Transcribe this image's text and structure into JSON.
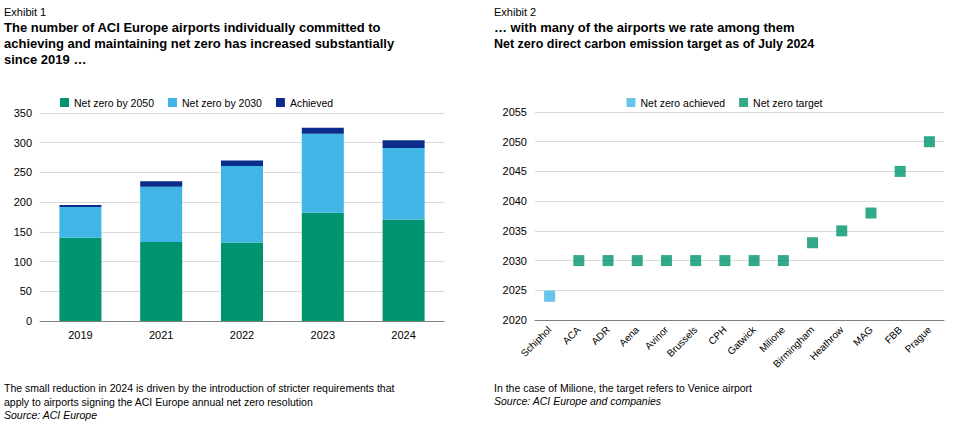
{
  "chart_data": [
    {
      "type": "bar",
      "exhibit": "Exhibit 1",
      "title": "The number of ACI Europe airports individually committed to\nachieving and maintaining net zero has increased substantially\nsince 2019 …",
      "note": "The small reduction in 2024 is driven by the introduction of stricter requirements that\napply to airports signing the ACI Europe annual net zero resolution",
      "source": "Source: ACI Europe",
      "categories": [
        "2019",
        "2021",
        "2022",
        "2023",
        "2024"
      ],
      "series": [
        {
          "name": "Net zero by 2050",
          "color": "#00936f",
          "values": [
            140,
            133,
            132,
            182,
            171
          ]
        },
        {
          "name": "Net zero by 2030",
          "color": "#41b6e6",
          "values": [
            52,
            93,
            129,
            133,
            120
          ]
        },
        {
          "name": "Achieved",
          "color": "#0a2d8c",
          "values": [
            3,
            9,
            9,
            10,
            13
          ]
        }
      ],
      "stacked": true,
      "ylim": [
        0,
        350
      ],
      "yticks": [
        0,
        50,
        100,
        150,
        200,
        250,
        300,
        350
      ],
      "grid": true,
      "legend": "top-left"
    },
    {
      "type": "scatter",
      "exhibit": "Exhibit 2",
      "title": "… with many of the airports we rate among them",
      "subtitle": "Net zero direct carbon emission target as of July 2024",
      "note": "In the case of Milione, the target refers to Venice airport",
      "source": "Source: ACI Europe and companies",
      "categories": [
        "Schiphol",
        "ACA",
        "ADR",
        "Aena",
        "Avinor",
        "Brussels",
        "CPH",
        "Gatwick",
        "Milione",
        "Birmingham",
        "Heathrow",
        "MAG",
        "FBB",
        "Prague"
      ],
      "series": [
        {
          "name": "Net zero achieved",
          "color": "#41b6e6",
          "marker": "square",
          "values": [
            2024,
            null,
            null,
            null,
            null,
            null,
            null,
            null,
            null,
            null,
            null,
            null,
            null,
            null
          ]
        },
        {
          "name": "Net zero target",
          "color": "#00936f",
          "marker": "square",
          "values": [
            null,
            2030,
            2030,
            2030,
            2030,
            2030,
            2030,
            2030,
            2030,
            2033,
            2035,
            2038,
            2045,
            2050
          ]
        }
      ],
      "ylim": [
        2020,
        2055
      ],
      "yticks": [
        2020,
        2025,
        2030,
        2035,
        2040,
        2045,
        2050,
        2055
      ],
      "grid": true,
      "legend": "top"
    }
  ]
}
